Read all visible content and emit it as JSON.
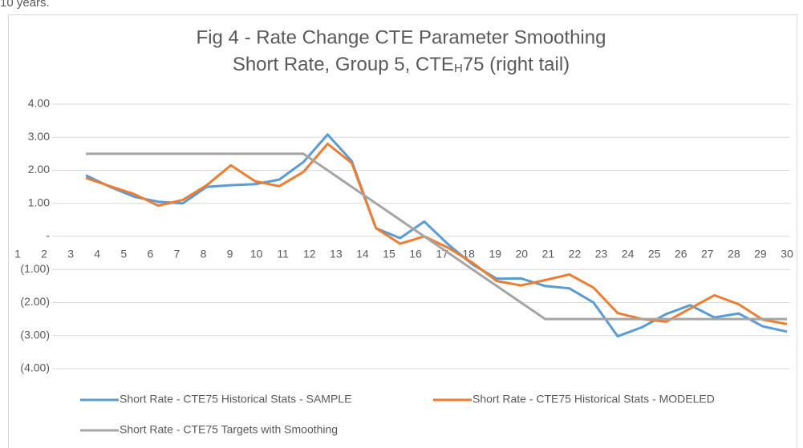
{
  "intro_text": "10 years.",
  "chart_data": {
    "type": "line",
    "title": "Fig 4 - Rate Change CTE Parameter Smoothing",
    "subtitle_parts": [
      "Short Rate, Group 5, CTE",
      "H",
      "75 (right tail)"
    ],
    "categories": [
      "1",
      "2",
      "3",
      "4",
      "5",
      "6",
      "7",
      "8",
      "9",
      "10",
      "11",
      "12",
      "13",
      "14",
      "15",
      "16",
      "17",
      "18",
      "19",
      "20",
      "21",
      "22",
      "23",
      "24",
      "25",
      "26",
      "27",
      "28",
      "29",
      "30"
    ],
    "series": [
      {
        "name": "Short Rate - CTE75 Historical Stats - SAMPLE",
        "color": "#5b9bd5",
        "values": [
          1.85,
          1.5,
          1.2,
          1.05,
          1.0,
          1.5,
          1.55,
          1.58,
          1.72,
          2.25,
          3.08,
          2.28,
          0.25,
          -0.05,
          0.45,
          -0.25,
          -0.85,
          -1.28,
          -1.27,
          -1.5,
          -1.57,
          -2.0,
          -3.02,
          -2.75,
          -2.35,
          -2.08,
          -2.45,
          -2.33,
          -2.72,
          -2.88
        ]
      },
      {
        "name": "Short Rate - CTE75 Historical Stats - MODELED",
        "color": "#ed7d31",
        "values": [
          1.77,
          1.52,
          1.28,
          0.93,
          1.1,
          1.55,
          2.15,
          1.67,
          1.52,
          1.95,
          2.8,
          2.22,
          0.25,
          -0.22,
          0.0,
          -0.35,
          -0.8,
          -1.35,
          -1.48,
          -1.32,
          -1.15,
          -1.55,
          -2.32,
          -2.5,
          -2.58,
          -2.18,
          -1.78,
          -2.05,
          -2.52,
          -2.65
        ]
      },
      {
        "name": "Short Rate - CTE75 Targets with Smoothing",
        "color": "#a5a5a5",
        "values": [
          2.5,
          2.5,
          2.5,
          2.5,
          2.5,
          2.5,
          2.5,
          2.5,
          2.5,
          2.5,
          2.0,
          1.5,
          1.0,
          0.5,
          0.0,
          -0.5,
          -1.0,
          -1.5,
          -2.0,
          -2.5,
          -2.5,
          -2.5,
          -2.5,
          -2.5,
          -2.5,
          -2.5,
          -2.5,
          -2.5,
          -2.5,
          -2.5
        ]
      }
    ],
    "ylim": [
      -4,
      4
    ],
    "yticks": [
      {
        "value": 4,
        "label": "4.00"
      },
      {
        "value": 3,
        "label": "3.00"
      },
      {
        "value": 2,
        "label": "2.00"
      },
      {
        "value": 1,
        "label": "1.00"
      },
      {
        "value": 0,
        "label": "-"
      },
      {
        "value": -1,
        "label": "(1.00)"
      },
      {
        "value": -2,
        "label": "(2.00)"
      },
      {
        "value": -3,
        "label": "(3.00)"
      },
      {
        "value": -4,
        "label": "(4.00)"
      }
    ],
    "grid": true
  }
}
